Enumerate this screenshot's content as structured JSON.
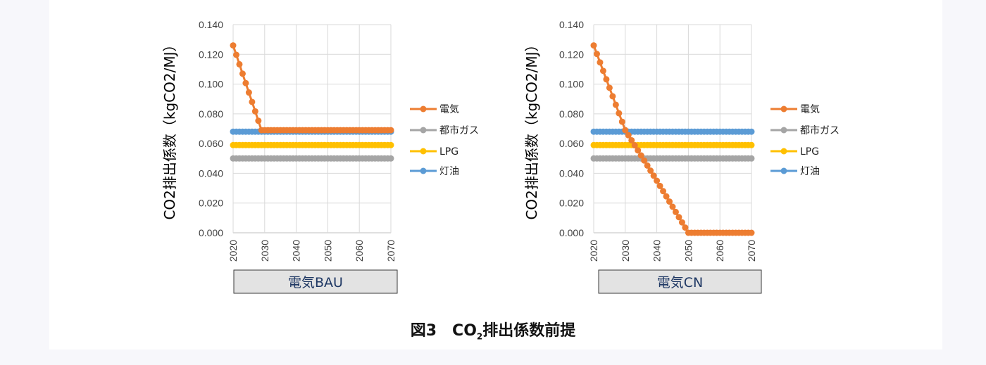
{
  "colors": {
    "電気": "#ed7d31",
    "都市ガス": "#a5a5a5",
    "LPG": "#ffc000",
    "灯油": "#5b9bd5",
    "grid": "#d9d9d9",
    "axis": "#bfbfbf",
    "scenario_box": "#e3e3e3"
  },
  "chart_data": [
    {
      "type": "line",
      "scenario_label": "電気BAU",
      "ylabel": "CO2排出係数（kgCO2/MJ）",
      "xlim": [
        2020,
        2070
      ],
      "ylim": [
        0,
        0.14
      ],
      "yticks": [
        "0.000",
        "0.020",
        "0.040",
        "0.060",
        "0.080",
        "0.100",
        "0.120",
        "0.140"
      ],
      "xticks": [
        "2020",
        "2030",
        "2040",
        "2050",
        "2060",
        "2070"
      ],
      "legend_position": "right",
      "grid": true,
      "series": [
        {
          "name": "電気",
          "color_key": "電気",
          "segments": [
            [
              2020,
              0.126
            ],
            [
              2029,
              0.069
            ],
            [
              2030,
              0.069
            ],
            [
              2070,
              0.069
            ]
          ]
        },
        {
          "name": "都市ガス",
          "color_key": "都市ガス",
          "segments": [
            [
              2020,
              0.05
            ],
            [
              2070,
              0.05
            ]
          ]
        },
        {
          "name": "LPG",
          "color_key": "LPG",
          "segments": [
            [
              2020,
              0.059
            ],
            [
              2070,
              0.059
            ]
          ]
        },
        {
          "name": "灯油",
          "color_key": "灯油",
          "segments": [
            [
              2020,
              0.068
            ],
            [
              2070,
              0.068
            ]
          ]
        }
      ]
    },
    {
      "type": "line",
      "scenario_label": "電気CN",
      "ylabel": "CO2排出係数（kgCO2/MJ）",
      "xlim": [
        2020,
        2070
      ],
      "ylim": [
        0,
        0.14
      ],
      "yticks": [
        "0.000",
        "0.020",
        "0.040",
        "0.060",
        "0.080",
        "0.100",
        "0.120",
        "0.140"
      ],
      "xticks": [
        "2020",
        "2030",
        "2040",
        "2050",
        "2060",
        "2070"
      ],
      "legend_position": "right",
      "grid": true,
      "series": [
        {
          "name": "電気",
          "color_key": "電気",
          "segments": [
            [
              2020,
              0.126
            ],
            [
              2030,
              0.069
            ],
            [
              2040,
              0.035
            ],
            [
              2050,
              0.0
            ],
            [
              2070,
              0.0
            ]
          ]
        },
        {
          "name": "都市ガス",
          "color_key": "都市ガス",
          "segments": [
            [
              2020,
              0.05
            ],
            [
              2070,
              0.05
            ]
          ]
        },
        {
          "name": "LPG",
          "color_key": "LPG",
          "segments": [
            [
              2020,
              0.059
            ],
            [
              2070,
              0.059
            ]
          ]
        },
        {
          "name": "灯油",
          "color_key": "灯油",
          "segments": [
            [
              2020,
              0.068
            ],
            [
              2070,
              0.068
            ]
          ]
        }
      ]
    }
  ],
  "figure_caption": {
    "prefix": "図3　CO",
    "subscript": "2",
    "suffix": "排出係数前提"
  }
}
